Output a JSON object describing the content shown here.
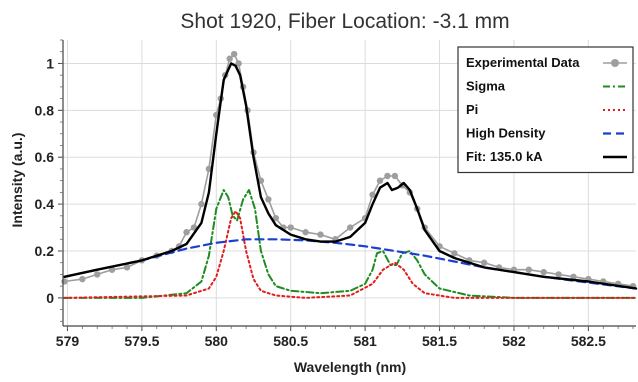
{
  "chart_data": {
    "type": "line",
    "title": "Shot 1920, Fiber Location: -3.1 mm",
    "xlabel": "Wavelength (nm)",
    "ylabel": "Intensity (a.u.)",
    "xlim": [
      578.97,
      582.82
    ],
    "ylim": [
      -0.12,
      1.1
    ],
    "xticks": [
      579,
      579.5,
      580,
      580.5,
      581,
      581.5,
      582,
      582.5
    ],
    "xtick_labels": [
      "579",
      "579.5",
      "580",
      "580.5",
      "581",
      "581.5",
      "582",
      "582.5"
    ],
    "yticks": [
      0,
      0.2,
      0.4,
      0.6,
      0.8,
      1
    ],
    "ytick_labels": [
      "0",
      "0.2",
      "0.4",
      "0.6",
      "0.8",
      "1"
    ],
    "grid": true,
    "legend_position": "top-right",
    "series": [
      {
        "name": "Experimental Data",
        "style": "line-marker",
        "color": "#9e9e9e",
        "x": [
          578.98,
          579.1,
          579.2,
          579.3,
          579.4,
          579.5,
          579.6,
          579.7,
          579.75,
          579.8,
          579.85,
          579.9,
          579.95,
          580.0,
          580.03,
          580.06,
          580.09,
          580.12,
          580.15,
          580.18,
          580.21,
          580.25,
          580.3,
          580.35,
          580.4,
          580.45,
          580.5,
          580.6,
          580.7,
          580.8,
          580.9,
          581.0,
          581.05,
          581.1,
          581.15,
          581.2,
          581.25,
          581.3,
          581.35,
          581.4,
          581.5,
          581.6,
          581.7,
          581.8,
          581.9,
          582.0,
          582.1,
          582.2,
          582.3,
          582.4,
          582.5,
          582.6,
          582.7,
          582.8
        ],
        "y": [
          0.07,
          0.08,
          0.1,
          0.12,
          0.13,
          0.16,
          0.18,
          0.2,
          0.22,
          0.28,
          0.3,
          0.4,
          0.55,
          0.78,
          0.85,
          0.95,
          1.02,
          1.04,
          1.0,
          0.9,
          0.8,
          0.62,
          0.5,
          0.42,
          0.34,
          0.3,
          0.3,
          0.28,
          0.27,
          0.25,
          0.3,
          0.34,
          0.44,
          0.5,
          0.52,
          0.52,
          0.48,
          0.45,
          0.38,
          0.3,
          0.22,
          0.19,
          0.16,
          0.15,
          0.13,
          0.12,
          0.12,
          0.11,
          0.1,
          0.09,
          0.08,
          0.07,
          0.06,
          0.05
        ]
      },
      {
        "name": "Sigma",
        "style": "dash-dot",
        "color": "#1e8c1e",
        "x": [
          578.98,
          579.5,
          579.8,
          579.9,
          579.95,
          580.0,
          580.05,
          580.08,
          580.11,
          580.14,
          580.18,
          580.22,
          580.26,
          580.3,
          580.35,
          580.4,
          580.5,
          580.7,
          580.9,
          581.0,
          581.05,
          581.08,
          581.12,
          581.17,
          581.21,
          581.25,
          581.3,
          581.35,
          581.4,
          581.5,
          581.7,
          582.0,
          582.82
        ],
        "y": [
          0.0,
          0.0,
          0.02,
          0.07,
          0.18,
          0.38,
          0.46,
          0.43,
          0.35,
          0.33,
          0.42,
          0.46,
          0.38,
          0.2,
          0.1,
          0.05,
          0.03,
          0.02,
          0.03,
          0.06,
          0.12,
          0.19,
          0.2,
          0.14,
          0.14,
          0.19,
          0.2,
          0.16,
          0.1,
          0.04,
          0.01,
          0.0,
          0.0
        ]
      },
      {
        "name": "Pi",
        "style": "dotted",
        "color": "#e01e1e",
        "x": [
          578.98,
          579.8,
          579.95,
          580.0,
          580.05,
          580.1,
          580.13,
          580.16,
          580.2,
          580.25,
          580.3,
          580.4,
          580.6,
          580.9,
          581.05,
          581.12,
          581.2,
          581.26,
          581.32,
          581.4,
          581.6,
          582.82
        ],
        "y": [
          0.0,
          0.01,
          0.04,
          0.09,
          0.2,
          0.34,
          0.37,
          0.34,
          0.2,
          0.08,
          0.03,
          0.01,
          0.0,
          0.01,
          0.06,
          0.12,
          0.15,
          0.12,
          0.06,
          0.02,
          0.0,
          0.0
        ]
      },
      {
        "name": "High Density",
        "style": "dashed",
        "color": "#1c3fd1",
        "x": [
          578.98,
          579.2,
          579.5,
          579.8,
          580.0,
          580.2,
          580.4,
          580.6,
          580.8,
          581.0,
          581.2,
          581.4,
          581.6,
          581.8,
          582.0,
          582.2,
          582.5,
          582.82
        ],
        "y": [
          0.09,
          0.12,
          0.16,
          0.21,
          0.235,
          0.25,
          0.25,
          0.245,
          0.235,
          0.22,
          0.2,
          0.18,
          0.155,
          0.13,
          0.11,
          0.09,
          0.065,
          0.04
        ]
      },
      {
        "name": "Fit: 135.0 kA",
        "style": "solid",
        "color": "#000000",
        "x": [
          578.98,
          579.2,
          579.5,
          579.7,
          579.8,
          579.9,
          579.95,
          580.0,
          580.05,
          580.1,
          580.13,
          580.16,
          580.2,
          580.25,
          580.3,
          580.35,
          580.4,
          580.5,
          580.6,
          580.7,
          580.8,
          580.9,
          581.0,
          581.05,
          581.1,
          581.15,
          581.18,
          581.22,
          581.26,
          581.3,
          581.35,
          581.4,
          581.5,
          581.6,
          581.8,
          582.0,
          582.2,
          582.5,
          582.82
        ],
        "y": [
          0.09,
          0.12,
          0.16,
          0.2,
          0.23,
          0.32,
          0.45,
          0.7,
          0.93,
          1.0,
          0.99,
          0.95,
          0.82,
          0.6,
          0.43,
          0.36,
          0.31,
          0.27,
          0.25,
          0.24,
          0.24,
          0.26,
          0.32,
          0.4,
          0.47,
          0.49,
          0.46,
          0.47,
          0.49,
          0.46,
          0.38,
          0.29,
          0.2,
          0.17,
          0.13,
          0.11,
          0.09,
          0.07,
          0.04
        ]
      }
    ]
  }
}
